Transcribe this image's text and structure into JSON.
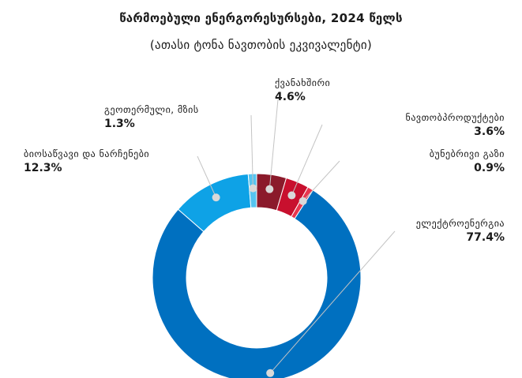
{
  "chart_data": {
    "type": "pie",
    "title": "წარმოებული ენერგორესურსები, 2024 წელს",
    "subtitle": "(ათასი ტონა ნავთობის ეკვივალენტი)",
    "slices": [
      {
        "label": "ქვანახშირი",
        "value": 4.6,
        "display": "4.6%",
        "color": "#8b1a2b"
      },
      {
        "label": "ნავთობპროდუქტები",
        "value": 3.6,
        "display": "3.6%",
        "color": "#c8102e"
      },
      {
        "label": "ბუნებრივი გაზი",
        "value": 0.9,
        "display": "0.9%",
        "color": "#e8364f"
      },
      {
        "label": "ელექტროენერგია",
        "value": 77.4,
        "display": "77.4%",
        "color": "#0070c0"
      },
      {
        "label": "ბიოსაწვავი და ნარჩენები",
        "value": 12.3,
        "display": "12.3%",
        "color": "#0ea2e6"
      },
      {
        "label": "გეოთერმული, მზის",
        "value": 1.3,
        "display": "1.3%",
        "color": "#56c4f0"
      }
    ],
    "legend": "none"
  }
}
